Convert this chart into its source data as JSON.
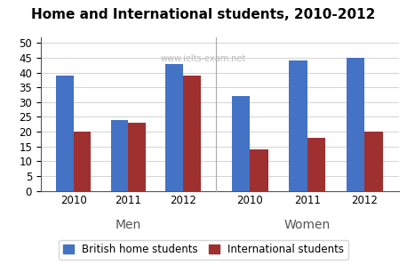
{
  "title": "Home and International students, 2010-2012",
  "watermark": "www.ielts-exam.net",
  "groups": [
    "Men",
    "Women"
  ],
  "years": [
    "2010",
    "2011",
    "2012"
  ],
  "british_home": {
    "Men": [
      39,
      24,
      43
    ],
    "Women": [
      32,
      44,
      45
    ]
  },
  "international": {
    "Men": [
      20,
      23,
      39
    ],
    "Women": [
      14,
      18,
      20
    ]
  },
  "bar_color_british": "#4472C4",
  "bar_color_intl": "#9E3030",
  "ylim": [
    0,
    52
  ],
  "yticks": [
    0,
    5,
    10,
    15,
    20,
    25,
    30,
    35,
    40,
    45,
    50
  ],
  "legend_labels": [
    "British home students",
    "International students"
  ],
  "title_fontsize": 11,
  "tick_fontsize": 8.5,
  "group_fontsize": 10,
  "legend_fontsize": 8.5,
  "watermark_fontsize": 7
}
